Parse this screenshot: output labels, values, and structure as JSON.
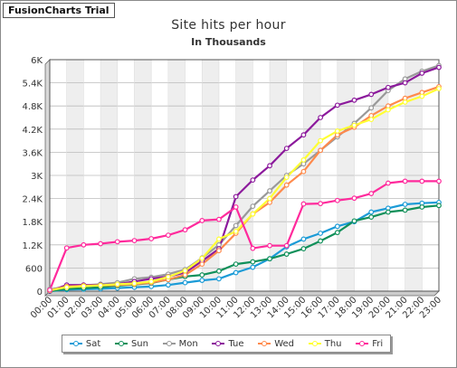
{
  "badge": "FusionCharts Trial",
  "chart_data": {
    "type": "line",
    "title": "Site hits per hour",
    "subtitle": "In Thousands",
    "xlabel": "",
    "ylabel": "",
    "ylim": [
      0,
      6000
    ],
    "y_ticks": [
      "0",
      "600",
      "1.2K",
      "1.8K",
      "2.4K",
      "3K",
      "3.6K",
      "4.2K",
      "4.8K",
      "5.4K",
      "6K"
    ],
    "categories": [
      "00:00",
      "01:00",
      "02:00",
      "03:00",
      "04:00",
      "05:00",
      "06:00",
      "07:00",
      "08:00",
      "09:00",
      "10:00",
      "11:00",
      "12:00",
      "13:00",
      "14:00",
      "15:00",
      "16:00",
      "17:00",
      "18:00",
      "19:00",
      "20:00",
      "21:00",
      "22:00",
      "23:00"
    ],
    "grid": true,
    "legend_position": "bottom",
    "series": [
      {
        "name": "Sat",
        "color": "#1b9bd7",
        "values": [
          0,
          40,
          50,
          60,
          80,
          100,
          120,
          160,
          220,
          280,
          320,
          480,
          620,
          840,
          1150,
          1350,
          1500,
          1680,
          1800,
          2050,
          2150,
          2250,
          2280,
          2300
        ]
      },
      {
        "name": "Sun",
        "color": "#10905a",
        "values": [
          0,
          60,
          80,
          100,
          140,
          170,
          210,
          300,
          380,
          420,
          520,
          700,
          760,
          840,
          960,
          1100,
          1300,
          1520,
          1820,
          1920,
          2050,
          2100,
          2180,
          2220
        ]
      },
      {
        "name": "Mon",
        "color": "#999999",
        "values": [
          50,
          120,
          150,
          180,
          220,
          320,
          360,
          440,
          560,
          860,
          1200,
          1700,
          2200,
          2600,
          3000,
          3300,
          3650,
          4000,
          4350,
          4750,
          5200,
          5500,
          5700,
          5850
        ]
      },
      {
        "name": "Tue",
        "color": "#8c1a9c",
        "values": [
          0,
          160,
          160,
          160,
          180,
          250,
          320,
          380,
          480,
          780,
          1100,
          2450,
          2880,
          3250,
          3700,
          4050,
          4500,
          4820,
          4950,
          5100,
          5280,
          5400,
          5650,
          5800
        ]
      },
      {
        "name": "Wed",
        "color": "#ff8a4c",
        "values": [
          20,
          120,
          140,
          150,
          160,
          180,
          220,
          300,
          420,
          700,
          1050,
          1500,
          2000,
          2300,
          2750,
          3100,
          3650,
          4050,
          4250,
          4550,
          4800,
          5000,
          5150,
          5300
        ]
      },
      {
        "name": "Thu",
        "color": "#ffff33",
        "values": [
          20,
          100,
          130,
          150,
          180,
          200,
          250,
          370,
          530,
          850,
          1350,
          1550,
          2000,
          2400,
          2950,
          3400,
          3900,
          4150,
          4300,
          4450,
          4700,
          4900,
          5050,
          5250
        ]
      },
      {
        "name": "Fri",
        "color": "#ff2a9c",
        "values": [
          30,
          1120,
          1200,
          1230,
          1280,
          1310,
          1360,
          1450,
          1590,
          1830,
          1860,
          2180,
          1110,
          1180,
          1180,
          2260,
          2270,
          2350,
          2410,
          2530,
          2800,
          2850,
          2850,
          2850
        ]
      }
    ]
  }
}
